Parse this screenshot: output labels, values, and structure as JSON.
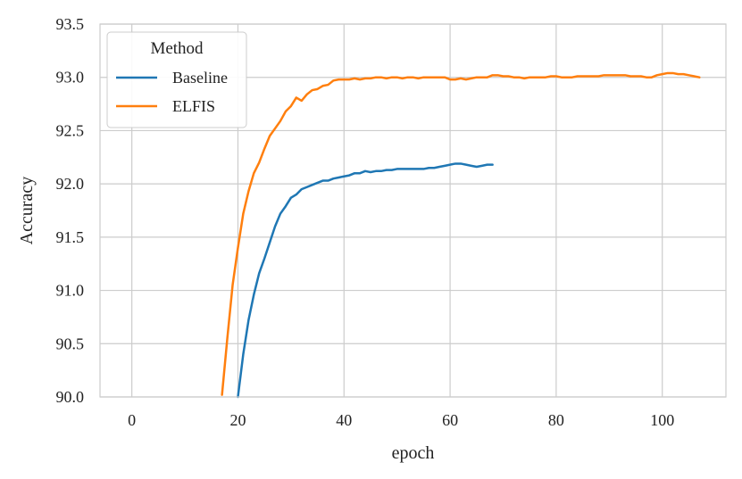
{
  "chart_data": {
    "type": "line",
    "xlabel": "epoch",
    "ylabel": "Accuracy",
    "xlim": [
      -6,
      112
    ],
    "ylim": [
      90.0,
      93.5
    ],
    "xticks": [
      0,
      20,
      40,
      60,
      80,
      100
    ],
    "yticks": [
      90.0,
      90.5,
      91.0,
      91.5,
      92.0,
      92.5,
      93.0,
      93.5
    ],
    "ytick_labels": [
      "90.0",
      "90.5",
      "91.0",
      "91.5",
      "92.0",
      "92.5",
      "93.0",
      "93.5"
    ],
    "xtick_labels": [
      "0",
      "20",
      "40",
      "60",
      "80",
      "100"
    ],
    "grid": true,
    "legend": {
      "title": "Method",
      "placement": "top-left"
    },
    "series": [
      {
        "name": "Baseline",
        "color": "#1f77b4",
        "x": [
          20,
          21,
          22,
          23,
          24,
          25,
          26,
          27,
          28,
          29,
          30,
          31,
          32,
          33,
          34,
          35,
          36,
          37,
          38,
          39,
          40,
          41,
          42,
          43,
          44,
          45,
          46,
          47,
          48,
          49,
          50,
          51,
          52,
          53,
          54,
          55,
          56,
          57,
          58,
          59,
          60,
          61,
          62,
          63,
          64,
          65,
          66,
          67,
          68
        ],
        "y": [
          90.0,
          90.4,
          90.72,
          90.96,
          91.16,
          91.3,
          91.45,
          91.6,
          91.72,
          91.79,
          91.87,
          91.9,
          91.95,
          91.97,
          91.99,
          92.01,
          92.03,
          92.03,
          92.05,
          92.06,
          92.07,
          92.08,
          92.1,
          92.1,
          92.12,
          92.11,
          92.12,
          92.12,
          92.13,
          92.13,
          92.14,
          92.14,
          92.14,
          92.14,
          92.14,
          92.14,
          92.15,
          92.15,
          92.16,
          92.17,
          92.18,
          92.19,
          92.19,
          92.18,
          92.17,
          92.16,
          92.17,
          92.18,
          92.18
        ]
      },
      {
        "name": "ELFIS",
        "color": "#ff7f0e",
        "x": [
          17,
          18,
          19,
          20,
          21,
          22,
          23,
          24,
          25,
          26,
          27,
          28,
          29,
          30,
          31,
          32,
          33,
          34,
          35,
          36,
          37,
          38,
          39,
          40,
          41,
          42,
          43,
          44,
          45,
          46,
          47,
          48,
          49,
          50,
          51,
          52,
          53,
          54,
          55,
          56,
          57,
          58,
          59,
          60,
          61,
          62,
          63,
          64,
          65,
          66,
          67,
          68,
          69,
          70,
          71,
          72,
          73,
          74,
          75,
          76,
          77,
          78,
          79,
          80,
          81,
          82,
          83,
          84,
          85,
          86,
          87,
          88,
          89,
          90,
          91,
          92,
          93,
          94,
          95,
          96,
          97,
          98,
          99,
          100,
          101,
          102,
          103,
          104,
          105,
          106,
          107
        ],
        "y": [
          90.02,
          90.55,
          91.05,
          91.4,
          91.72,
          91.93,
          92.1,
          92.2,
          92.33,
          92.45,
          92.52,
          92.59,
          92.68,
          92.73,
          92.81,
          92.78,
          92.84,
          92.88,
          92.89,
          92.92,
          92.93,
          92.97,
          92.98,
          92.98,
          92.98,
          92.99,
          92.98,
          92.99,
          92.99,
          93.0,
          93.0,
          92.99,
          93.0,
          93.0,
          92.99,
          93.0,
          93.0,
          92.99,
          93.0,
          93.0,
          93.0,
          93.0,
          93.0,
          92.98,
          92.98,
          92.99,
          92.98,
          92.99,
          93.0,
          93.0,
          93.0,
          93.02,
          93.02,
          93.01,
          93.01,
          93.0,
          93.0,
          92.99,
          93.0,
          93.0,
          93.0,
          93.0,
          93.01,
          93.01,
          93.0,
          93.0,
          93.0,
          93.01,
          93.01,
          93.01,
          93.01,
          93.01,
          93.02,
          93.02,
          93.02,
          93.02,
          93.02,
          93.01,
          93.01,
          93.01,
          93.0,
          93.0,
          93.02,
          93.03,
          93.04,
          93.04,
          93.03,
          93.03,
          93.02,
          93.01,
          93.0
        ]
      }
    ]
  }
}
